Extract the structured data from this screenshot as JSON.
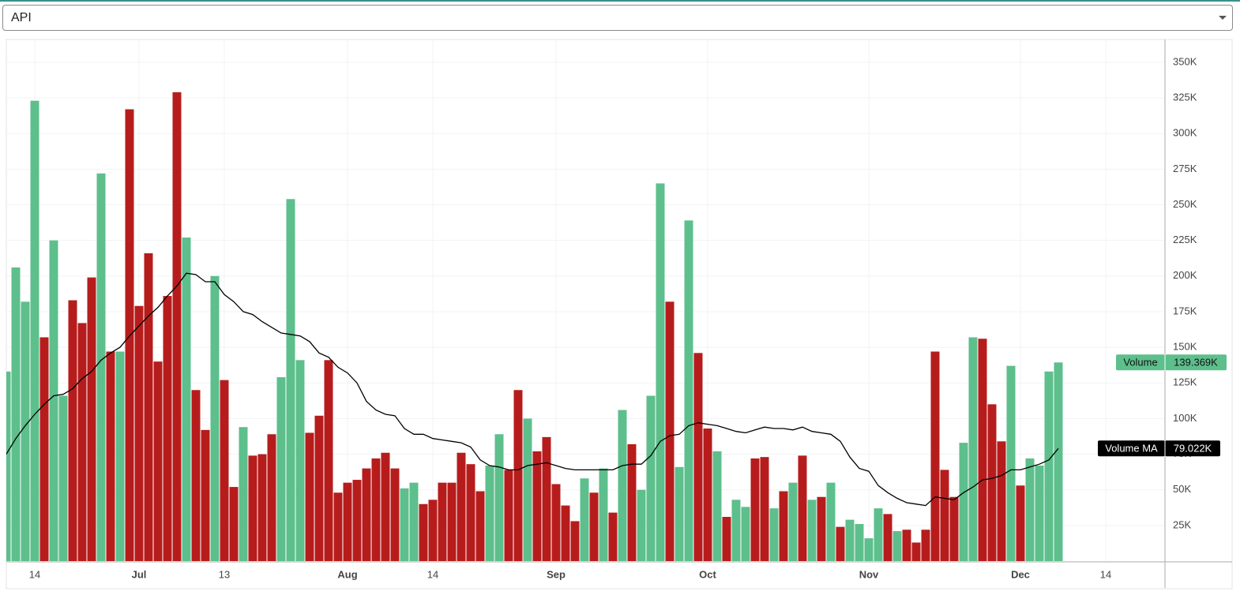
{
  "toolbar": {
    "selected": "API"
  },
  "chart_data": {
    "type": "bar",
    "categories": [
      null,
      null,
      null,
      null,
      null,
      null,
      null,
      null,
      null,
      null,
      null,
      null,
      null,
      null,
      null,
      null,
      null,
      null,
      null,
      null,
      null,
      null,
      null,
      null,
      null,
      null,
      null,
      null,
      null,
      null,
      null,
      null,
      null,
      null,
      null,
      null,
      null,
      null,
      null,
      null,
      null,
      null,
      null,
      null,
      null,
      null,
      null,
      null,
      null,
      null,
      null,
      null,
      null,
      null,
      null,
      null,
      null,
      null,
      null,
      null,
      null,
      null,
      null,
      null,
      null,
      null,
      null,
      null,
      null,
      null,
      null,
      null,
      null,
      null,
      null,
      null,
      null,
      null,
      null,
      null,
      null,
      null,
      null,
      null,
      null,
      null,
      null,
      null,
      null,
      null,
      null,
      null,
      null,
      null,
      null,
      null,
      null,
      null,
      null,
      null,
      null,
      null,
      null,
      null,
      null,
      null,
      null,
      null,
      null,
      null,
      null,
      null
    ],
    "xlim": [
      0,
      122.25
    ],
    "xticks": [
      {
        "value": 3,
        "label": "14"
      },
      {
        "value": 14,
        "label": "Jul"
      },
      {
        "value": 23,
        "label": "13"
      },
      {
        "value": 36,
        "label": "Aug"
      },
      {
        "value": 45,
        "label": "14"
      },
      {
        "value": 58,
        "label": "Sep"
      },
      {
        "value": 74,
        "label": "Oct"
      },
      {
        "value": 91,
        "label": "Nov"
      },
      {
        "value": 107,
        "label": "Dec"
      },
      {
        "value": 116,
        "label": "14"
      }
    ],
    "ylim": [
      0,
      366000
    ],
    "yticks": [
      {
        "value": 25000,
        "label": "25K"
      },
      {
        "value": 50000,
        "label": "50K"
      },
      {
        "value": 75000,
        "label": "75K"
      },
      {
        "value": 100000,
        "label": "100K"
      },
      {
        "value": 125000,
        "label": "125K"
      },
      {
        "value": 150000,
        "label": "150K"
      },
      {
        "value": 175000,
        "label": "175K"
      },
      {
        "value": 200000,
        "label": "200K"
      },
      {
        "value": 225000,
        "label": "225K"
      },
      {
        "value": 250000,
        "label": "250K"
      },
      {
        "value": 275000,
        "label": "275K"
      },
      {
        "value": 300000,
        "label": "300K"
      },
      {
        "value": 325000,
        "label": "325K"
      },
      {
        "value": 350000,
        "label": "350K"
      }
    ],
    "grid": true,
    "series": [
      {
        "name": "Volume",
        "color": "#5dbf8c",
        "values": [
          133000,
          206000,
          182000,
          323000,
          157000,
          225000,
          116000,
          183000,
          167000,
          199000,
          272000,
          147000,
          147000,
          317000,
          179000,
          216000,
          140000,
          186000,
          329000,
          227000,
          120000,
          92000,
          200000,
          127000,
          52000,
          94000,
          74000,
          75000,
          89000,
          129000,
          254000,
          141000,
          90000,
          102000,
          141000,
          48000,
          55000,
          57000,
          65000,
          72000,
          76000,
          65000,
          51000,
          55000,
          40000,
          43000,
          55000,
          55000,
          76000,
          68000,
          49000,
          67000,
          89000,
          64000,
          120000,
          100000,
          77000,
          87000,
          54000,
          39000,
          28000,
          58000,
          48000,
          65000,
          34000,
          106000,
          82000,
          50000,
          116000,
          265000,
          182000,
          66000,
          239000,
          146000,
          93000,
          77000,
          31000,
          43000,
          38000,
          72000,
          73000,
          37000,
          49000,
          55000,
          74000,
          43000,
          45000,
          55000,
          24000,
          29000,
          26000,
          16000,
          37000,
          33000,
          21000,
          22000,
          13000,
          22000,
          147000,
          64000,
          45000,
          83000,
          157000,
          156000,
          110000,
          84000,
          137000,
          53000,
          72000,
          67000,
          133000,
          139369
        ],
        "colors": [
          "#5dbf8c",
          "#5dbf8c",
          "#5dbf8c",
          "#5dbf8c",
          "#b71c1c",
          "#5dbf8c",
          "#5dbf8c",
          "#b71c1c",
          "#b71c1c",
          "#b71c1c",
          "#5dbf8c",
          "#b71c1c",
          "#5dbf8c",
          "#b71c1c",
          "#b71c1c",
          "#b71c1c",
          "#b71c1c",
          "#b71c1c",
          "#b71c1c",
          "#5dbf8c",
          "#b71c1c",
          "#b71c1c",
          "#5dbf8c",
          "#b71c1c",
          "#b71c1c",
          "#5dbf8c",
          "#b71c1c",
          "#b71c1c",
          "#b71c1c",
          "#5dbf8c",
          "#5dbf8c",
          "#5dbf8c",
          "#b71c1c",
          "#b71c1c",
          "#b71c1c",
          "#b71c1c",
          "#b71c1c",
          "#b71c1c",
          "#b71c1c",
          "#b71c1c",
          "#b71c1c",
          "#b71c1c",
          "#5dbf8c",
          "#5dbf8c",
          "#b71c1c",
          "#b71c1c",
          "#b71c1c",
          "#b71c1c",
          "#b71c1c",
          "#b71c1c",
          "#b71c1c",
          "#5dbf8c",
          "#5dbf8c",
          "#b71c1c",
          "#b71c1c",
          "#5dbf8c",
          "#b71c1c",
          "#b71c1c",
          "#b71c1c",
          "#b71c1c",
          "#b71c1c",
          "#5dbf8c",
          "#b71c1c",
          "#5dbf8c",
          "#b71c1c",
          "#5dbf8c",
          "#b71c1c",
          "#5dbf8c",
          "#5dbf8c",
          "#5dbf8c",
          "#b71c1c",
          "#5dbf8c",
          "#5dbf8c",
          "#b71c1c",
          "#b71c1c",
          "#5dbf8c",
          "#b71c1c",
          "#5dbf8c",
          "#5dbf8c",
          "#b71c1c",
          "#b71c1c",
          "#5dbf8c",
          "#b71c1c",
          "#5dbf8c",
          "#b71c1c",
          "#5dbf8c",
          "#b71c1c",
          "#5dbf8c",
          "#b71c1c",
          "#5dbf8c",
          "#5dbf8c",
          "#5dbf8c",
          "#5dbf8c",
          "#b71c1c",
          "#5dbf8c",
          "#b71c1c",
          "#b71c1c",
          "#b71c1c",
          "#b71c1c",
          "#b71c1c",
          "#b71c1c",
          "#5dbf8c",
          "#5dbf8c",
          "#b71c1c",
          "#b71c1c",
          "#b71c1c",
          "#5dbf8c",
          "#b71c1c",
          "#5dbf8c",
          "#5dbf8c",
          "#5dbf8c",
          "#5dbf8c"
        ],
        "value_labels": [
          null,
          null,
          null,
          null,
          null,
          null,
          null,
          null,
          null,
          null,
          null,
          null,
          null,
          null,
          null,
          null,
          null,
          null,
          null,
          null,
          null,
          null,
          null,
          null,
          null,
          null,
          null,
          null,
          null,
          null,
          null,
          null,
          null,
          null,
          null,
          null,
          null,
          null,
          null,
          null,
          null,
          null,
          null,
          null,
          null,
          null,
          null,
          null,
          null,
          null,
          null,
          null,
          null,
          null,
          null,
          null,
          null,
          null,
          null,
          null,
          null,
          null,
          null,
          null,
          null,
          null,
          null,
          null,
          null,
          null,
          null,
          null,
          null,
          null,
          null,
          null,
          null,
          null,
          null,
          null,
          null,
          null,
          null,
          null,
          null,
          null,
          null,
          null,
          null,
          null,
          null,
          null,
          null,
          null,
          null,
          null,
          null,
          null,
          null,
          null,
          null,
          null,
          null,
          null,
          null,
          null,
          null,
          null,
          null,
          null,
          null,
          "139.369K"
        ]
      },
      {
        "name": "Volume MA",
        "color": "#000000",
        "type": "line",
        "values": [
          75000,
          86000,
          95000,
          103000,
          110000,
          116000,
          117000,
          121000,
          128000,
          133000,
          141000,
          146000,
          150000,
          158000,
          165000,
          172000,
          178000,
          186000,
          193000,
          202000,
          201000,
          196000,
          196000,
          187000,
          182000,
          175000,
          173000,
          168000,
          164000,
          160000,
          159000,
          158000,
          154000,
          146000,
          143000,
          136000,
          132000,
          125000,
          112000,
          106000,
          103000,
          102000,
          93000,
          89000,
          89000,
          86000,
          85000,
          84000,
          83000,
          80000,
          71000,
          67000,
          66000,
          64000,
          64000,
          67000,
          68000,
          69000,
          67000,
          65000,
          64000,
          64000,
          64000,
          64000,
          64000,
          67000,
          68000,
          68000,
          74000,
          84000,
          88000,
          89000,
          95000,
          97000,
          96000,
          95000,
          93000,
          91000,
          90000,
          92000,
          94000,
          93000,
          93000,
          92000,
          94000,
          91000,
          90000,
          89000,
          84000,
          73000,
          65000,
          63000,
          53000,
          48000,
          44000,
          41000,
          40000,
          39000,
          45000,
          44000,
          43000,
          48000,
          52000,
          57000,
          58000,
          60000,
          64000,
          64000,
          66000,
          68000,
          71000,
          79022
        ],
        "value_labels": [
          null,
          null,
          null,
          null,
          null,
          null,
          null,
          null,
          null,
          null,
          null,
          null,
          null,
          null,
          null,
          null,
          null,
          null,
          null,
          null,
          null,
          null,
          null,
          null,
          null,
          null,
          null,
          null,
          null,
          null,
          null,
          null,
          null,
          null,
          null,
          null,
          null,
          null,
          null,
          null,
          null,
          null,
          null,
          null,
          null,
          null,
          null,
          null,
          null,
          null,
          null,
          null,
          null,
          null,
          null,
          null,
          null,
          null,
          null,
          null,
          null,
          null,
          null,
          null,
          null,
          null,
          null,
          null,
          null,
          null,
          null,
          null,
          null,
          null,
          null,
          null,
          null,
          null,
          null,
          null,
          null,
          null,
          null,
          null,
          null,
          null,
          null,
          null,
          null,
          null,
          null,
          null,
          null,
          null,
          null,
          null,
          null,
          null,
          null,
          null,
          null,
          null,
          null,
          null,
          null,
          null,
          null,
          null,
          null,
          null,
          null,
          "79.022K"
        ]
      }
    ]
  }
}
